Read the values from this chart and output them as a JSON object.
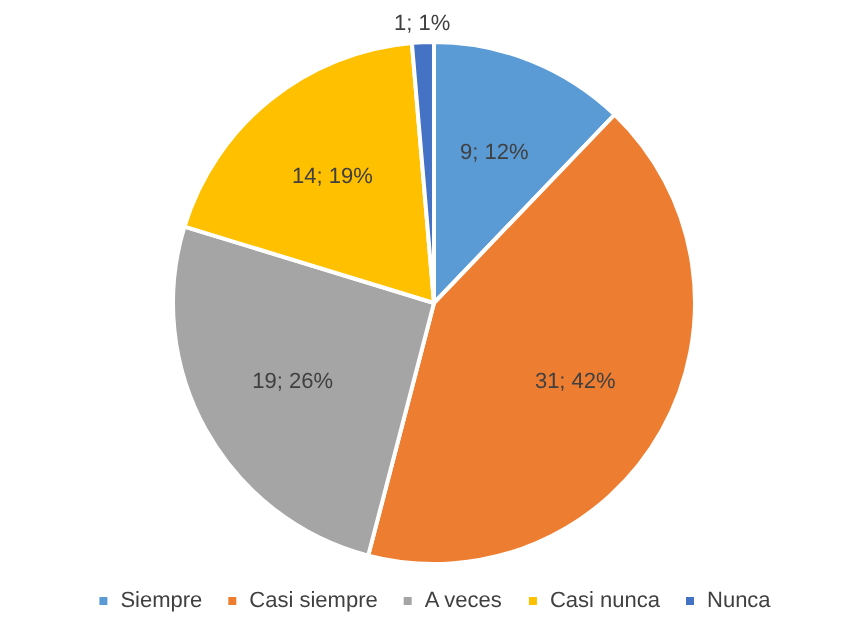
{
  "chart_data": {
    "type": "pie",
    "categories": [
      "Siempre",
      "Casi siempre",
      "A veces",
      "Casi nunca",
      "Nunca"
    ],
    "values": [
      9,
      31,
      19,
      14,
      1
    ],
    "colors": [
      "#5b9bd5",
      "#ed7d31",
      "#a5a5a5",
      "#ffc000",
      "#4472c4"
    ],
    "value_labels": [
      "9; 12%",
      "31; 42%",
      "19; 26%",
      "14; 19%",
      "1; 1%"
    ],
    "legend": "bottom"
  }
}
